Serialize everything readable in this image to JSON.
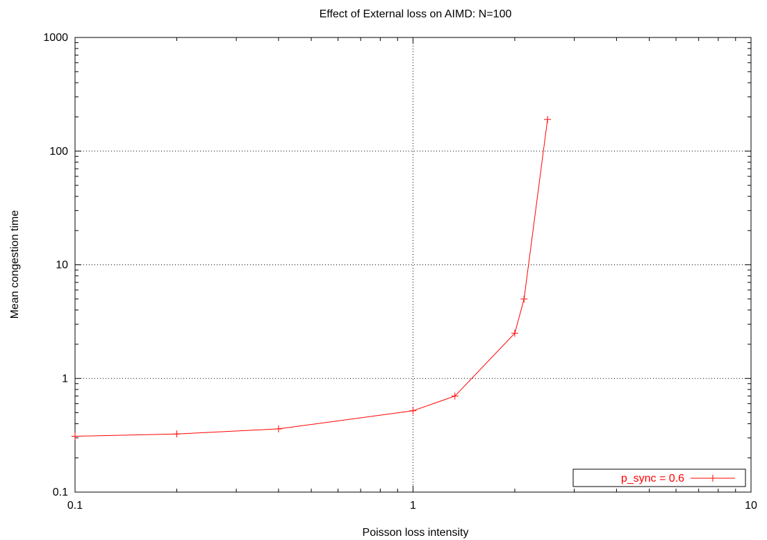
{
  "chart_data": {
    "type": "line",
    "title": "Effect of External loss on AIMD: N=100",
    "xlabel": "Poisson loss intensity",
    "ylabel": "Mean congestion time",
    "xscale": "log",
    "yscale": "log",
    "xlim": [
      0.1,
      10
    ],
    "ylim": [
      0.1,
      1000
    ],
    "x_ticks": [
      {
        "value": 0.1,
        "label": "0.1"
      },
      {
        "value": 1,
        "label": "1"
      },
      {
        "value": 10,
        "label": "10"
      }
    ],
    "y_ticks": [
      {
        "value": 0.1,
        "label": "0.1"
      },
      {
        "value": 1,
        "label": "1"
      },
      {
        "value": 10,
        "label": "10"
      },
      {
        "value": 100,
        "label": "100"
      },
      {
        "value": 1000,
        "label": "1000"
      }
    ],
    "grid": true,
    "legend_position": "bottom-right",
    "series": [
      {
        "name": "p_sync = 0.6",
        "color": "#ff0000",
        "marker": "plus",
        "x": [
          0.1,
          0.2,
          0.4,
          1.0,
          1.33,
          2.0,
          2.13,
          2.5
        ],
        "y": [
          0.31,
          0.325,
          0.36,
          0.52,
          0.7,
          2.5,
          5.0,
          190
        ]
      }
    ]
  }
}
